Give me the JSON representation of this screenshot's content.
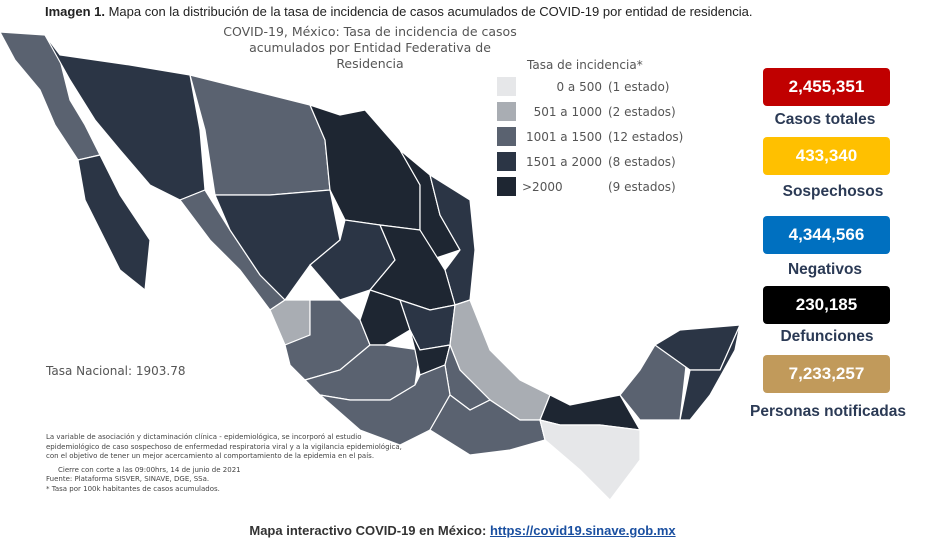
{
  "caption": {
    "label": "Imagen 1.",
    "text": " Mapa con la distribución de la tasa de incidencia de casos acumulados de COVID-19 por entidad de residencia."
  },
  "map": {
    "title_line1": "COVID-19, México: Tasa de incidencia de casos",
    "title_line2": "acumulados por Entidad Federativa de Residencia",
    "national_rate": "Tasa Nacional: 1903.78"
  },
  "legend": {
    "title": "Tasa de incidencia*",
    "items": [
      {
        "range": "0 a   500",
        "count": "(1 estado)",
        "color": "#e6e7e9"
      },
      {
        "range": "501 a  1000",
        "count": "(2 estados)",
        "color": "#a9adb3"
      },
      {
        "range": "1001 a  1500",
        "count": "(12 estados)",
        "color": "#5a6270"
      },
      {
        "range": "1501 a  2000",
        "count": "(8 estados)",
        "color": "#2b3545"
      },
      {
        "range": ">2000",
        "count": "(9 estados)",
        "color": "#1e2632"
      }
    ]
  },
  "stats": [
    {
      "value": "2,455,351",
      "label": "Casos totales",
      "color": "#c00000",
      "text": "#fff"
    },
    {
      "value": "433,340",
      "label": "Sospechosos",
      "color": "#ffc000",
      "text": "#fff"
    },
    {
      "value": "4,344,566",
      "label": "Negativos",
      "color": "#0070c0",
      "text": "#fff"
    },
    {
      "value": "230,185",
      "label": "Defunciones",
      "color": "#000000",
      "text": "#fff"
    },
    {
      "value": "7,233,257",
      "label": "Personas notificadas",
      "color": "#c19a5b",
      "text": "#fff"
    }
  ],
  "notes": [
    "La variable de asociación y dictaminación clínica - epidemiológica, se incorporó al estudio",
    "epidemiológico de caso sospechoso de enfermedad respiratoria viral y a la vigilancia epidemiológica,",
    "con el objetivo de tener un mejor acercamiento al comportamiento de la epidemia en el país.",
    "Cierre con corte a las 09:00hrs, 14 de junio de 2021",
    "Fuente: Plataforma SISVER, SINAVE, DGE, SSa.",
    "* Tasa por 100k habitantes de casos acumulados."
  ],
  "footer": {
    "text": "Mapa interactivo COVID-19 en México: ",
    "link": "https://covid19.sinave.gob.mx"
  }
}
